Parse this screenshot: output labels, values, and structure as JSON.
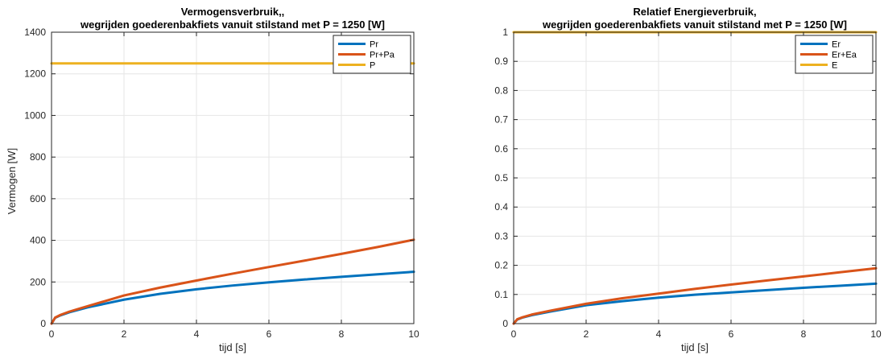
{
  "chart_data": [
    {
      "type": "line",
      "title": [
        "Vermogensverbruik,,",
        "wegrijden goederenbakfiets vanuit stilstand met P = 1250 [W]"
      ],
      "xlabel": "tijd [s]",
      "ylabel": "Vermogen [W]",
      "xlim": [
        0,
        10
      ],
      "ylim": [
        0,
        1400
      ],
      "xticks": [
        0,
        2,
        4,
        6,
        8,
        10
      ],
      "yticks": [
        0,
        200,
        400,
        600,
        800,
        1000,
        1200,
        1400
      ],
      "grid": true,
      "legend_position": "top-right",
      "x": [
        0,
        0.1,
        0.25,
        0.5,
        1,
        2,
        3,
        4,
        5,
        6,
        7,
        8,
        9,
        10
      ],
      "series": [
        {
          "name": "Pr",
          "color": "#0072BD",
          "values": [
            0,
            28,
            40,
            55,
            78,
            115,
            143,
            165,
            183,
            198,
            212,
            225,
            237,
            249
          ]
        },
        {
          "name": "Pr+Pa",
          "color": "#D95319",
          "values": [
            0,
            29,
            42,
            58,
            84,
            135,
            173,
            207,
            240,
            272,
            303,
            335,
            368,
            403
          ]
        },
        {
          "name": "P",
          "color": "#EDB120",
          "values": [
            1250,
            1250,
            1250,
            1250,
            1250,
            1250,
            1250,
            1250,
            1250,
            1250,
            1250,
            1250,
            1250,
            1250
          ]
        }
      ]
    },
    {
      "type": "line",
      "title": [
        "Relatief Energieverbruik,",
        "wegrijden goederenbakfiets vanuit stilstand met P = 1250 [W]"
      ],
      "xlabel": "tijd [s]",
      "ylabel": "",
      "xlim": [
        0,
        10
      ],
      "ylim": [
        0,
        1
      ],
      "xticks": [
        0,
        2,
        4,
        6,
        8,
        10
      ],
      "yticks": [
        0,
        0.1,
        0.2,
        0.3,
        0.4,
        0.5,
        0.6,
        0.7,
        0.8,
        0.9,
        1
      ],
      "grid": true,
      "legend_position": "top-right",
      "x": [
        0,
        0.1,
        0.25,
        0.5,
        1,
        2,
        3,
        4,
        5,
        6,
        7,
        8,
        9,
        10
      ],
      "series": [
        {
          "name": "Er",
          "color": "#0072BD",
          "values": [
            0,
            0.014,
            0.021,
            0.029,
            0.041,
            0.063,
            0.077,
            0.089,
            0.099,
            0.107,
            0.115,
            0.123,
            0.13,
            0.137
          ]
        },
        {
          "name": "Er+Ea",
          "color": "#D95319",
          "values": [
            0,
            0.015,
            0.022,
            0.031,
            0.044,
            0.068,
            0.087,
            0.103,
            0.119,
            0.134,
            0.148,
            0.162,
            0.176,
            0.19
          ]
        },
        {
          "name": "E",
          "color": "#EDB120",
          "values": [
            1,
            1,
            1,
            1,
            1,
            1,
            1,
            1,
            1,
            1,
            1,
            1,
            1,
            1
          ]
        }
      ]
    }
  ]
}
